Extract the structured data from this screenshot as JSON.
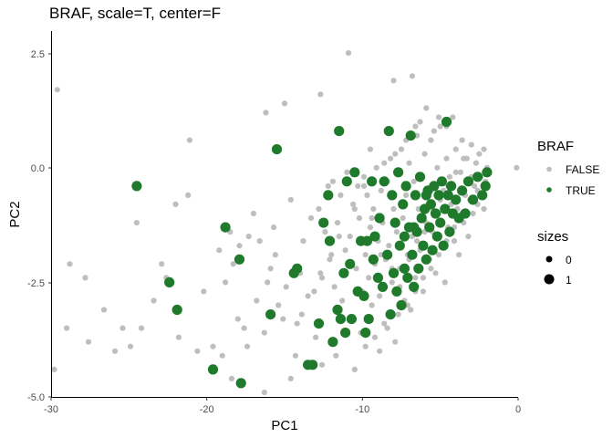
{
  "chart_data": {
    "type": "scatter",
    "title": "BRAF, scale=T, center=F",
    "xlabel": "PC1",
    "ylabel": "PC2",
    "xlim": [
      -30,
      0
    ],
    "ylim": [
      -5,
      3
    ],
    "x_ticks": [
      -30,
      -20,
      -10,
      0
    ],
    "x_tick_labels": [
      "-30",
      "-20",
      "-10",
      "0"
    ],
    "y_ticks": [
      -5,
      -2.5,
      0,
      2.5
    ],
    "y_tick_labels": [
      "-5.0",
      "-2.5",
      "0.0",
      "2.5"
    ],
    "grid": false,
    "legend_placement": "right",
    "legend": {
      "color_title": "BRAF",
      "color_entries": [
        {
          "label": "FALSE",
          "color": "#bebebe"
        },
        {
          "label": "TRUE",
          "color": "#1f7a2b"
        }
      ],
      "size_title": "sizes",
      "size_entries": [
        {
          "label": "0"
        },
        {
          "label": "1"
        }
      ]
    },
    "series": [
      {
        "name": "FALSE",
        "color": "#bebebe",
        "size": 0,
        "points": [
          [
            -29.8,
            -4.4
          ],
          [
            -29.6,
            1.7
          ],
          [
            -29.0,
            -3.5
          ],
          [
            -28.8,
            -2.1
          ],
          [
            -27.8,
            -2.4
          ],
          [
            -27.6,
            -3.8
          ],
          [
            -26.6,
            -3.1
          ],
          [
            -25.9,
            -4.0
          ],
          [
            -25.4,
            -3.5
          ],
          [
            -24.9,
            -3.9
          ],
          [
            -24.5,
            -1.2
          ],
          [
            -24.2,
            -3.5
          ],
          [
            -23.4,
            -2.9
          ],
          [
            -22.9,
            -2.1
          ],
          [
            -22.6,
            -2.4
          ],
          [
            -22.0,
            -0.8
          ],
          [
            -21.8,
            -3.7
          ],
          [
            -21.2,
            -0.6
          ],
          [
            -21.1,
            0.6
          ],
          [
            -20.6,
            -4.0
          ],
          [
            -20.2,
            -2.7
          ],
          [
            -19.6,
            -3.9
          ],
          [
            -19.2,
            -1.8
          ],
          [
            -19.0,
            -4.1
          ],
          [
            -18.8,
            -2.5
          ],
          [
            -18.5,
            -1.4
          ],
          [
            -18.3,
            -2.1
          ],
          [
            -18.0,
            -3.3
          ],
          [
            -17.9,
            -1.7
          ],
          [
            -17.6,
            -3.5
          ],
          [
            -17.3,
            -1.5
          ],
          [
            -17.0,
            -1.0
          ],
          [
            -16.8,
            -2.9
          ],
          [
            -16.6,
            -1.6
          ],
          [
            -16.3,
            -3.6
          ],
          [
            -15.9,
            -2.2
          ],
          [
            -15.7,
            -1.3
          ],
          [
            -15.4,
            -3.0
          ],
          [
            -15.1,
            -3.3
          ],
          [
            -14.9,
            -2.6
          ],
          [
            -14.6,
            -0.7
          ],
          [
            -14.3,
            -4.1
          ],
          [
            -14.2,
            -3.4
          ],
          [
            -14.0,
            -2.3
          ],
          [
            -13.8,
            -1.6
          ],
          [
            -13.5,
            -2.8
          ],
          [
            -13.3,
            -1.1
          ],
          [
            -13.0,
            -3.7
          ],
          [
            -12.8,
            -0.9
          ],
          [
            -12.6,
            -2.4
          ],
          [
            -12.4,
            -1.4
          ],
          [
            -12.2,
            -0.4
          ],
          [
            -12.1,
            -2.0
          ],
          [
            -11.9,
            -0.3
          ],
          [
            -11.8,
            -2.6
          ],
          [
            -11.6,
            -1.2
          ],
          [
            -11.4,
            -0.6
          ],
          [
            -11.3,
            -2.9
          ],
          [
            -11.1,
            -1.8
          ],
          [
            -11.0,
            -0.1
          ],
          [
            -10.9,
            2.5
          ],
          [
            -10.8,
            -1.5
          ],
          [
            -10.7,
            -3.3
          ],
          [
            -10.6,
            -0.8
          ],
          [
            -10.4,
            -2.2
          ],
          [
            -10.3,
            -0.4
          ],
          [
            -10.2,
            -1.1
          ],
          [
            -10.1,
            -3.6
          ],
          [
            -10.0,
            -2.7
          ],
          [
            -9.9,
            -0.2
          ],
          [
            -9.8,
            -1.9
          ],
          [
            -9.7,
            -0.6
          ],
          [
            -9.6,
            -2.4
          ],
          [
            -9.5,
            -1.3
          ],
          [
            -9.4,
            -3.0
          ],
          [
            -9.3,
            -0.9
          ],
          [
            -9.2,
            -2.1
          ],
          [
            -9.1,
            0.0
          ],
          [
            -9.0,
            -1.6
          ],
          [
            -8.9,
            -2.8
          ],
          [
            -8.8,
            -0.5
          ],
          [
            -8.7,
            -1.2
          ],
          [
            -8.6,
            -3.4
          ],
          [
            -8.5,
            -2.0
          ],
          [
            -8.4,
            -0.3
          ],
          [
            -8.3,
            -1.7
          ],
          [
            -8.2,
            0.2
          ],
          [
            -8.1,
            -2.5
          ],
          [
            -8.0,
            -0.9
          ],
          [
            -7.9,
            -3.8
          ],
          [
            -7.8,
            -1.4
          ],
          [
            -7.7,
            -0.1
          ],
          [
            -7.6,
            -2.2
          ],
          [
            -7.5,
            0.4
          ],
          [
            -7.4,
            -1.1
          ],
          [
            -7.3,
            -2.9
          ],
          [
            -7.2,
            -0.6
          ],
          [
            -7.1,
            -1.9
          ],
          [
            -7.0,
            0.1
          ],
          [
            -6.9,
            -3.1
          ],
          [
            -6.8,
            -1.5
          ],
          [
            -6.7,
            -0.3
          ],
          [
            -6.6,
            -2.4
          ],
          [
            -6.5,
            0.7
          ],
          [
            -6.4,
            -0.9
          ],
          [
            -6.3,
            -1.8
          ],
          [
            -6.2,
            -0.2
          ],
          [
            -6.1,
            -2.7
          ],
          [
            -6.0,
            0.3
          ],
          [
            -5.9,
            -1.2
          ],
          [
            -5.8,
            -0.6
          ],
          [
            -5.7,
            -2.0
          ],
          [
            -5.6,
            0.6
          ],
          [
            -5.5,
            -1.4
          ],
          [
            -5.4,
            -0.4
          ],
          [
            -5.3,
            -2.3
          ],
          [
            -5.2,
            0.0
          ],
          [
            -5.1,
            -1.0
          ],
          [
            -5.0,
            0.9
          ],
          [
            -4.9,
            -1.7
          ],
          [
            -4.8,
            -0.5
          ],
          [
            -4.7,
            -2.5
          ],
          [
            -4.6,
            0.2
          ],
          [
            -4.5,
            -1.3
          ],
          [
            -4.4,
            -0.2
          ],
          [
            -4.3,
            -0.8
          ],
          [
            -4.2,
            1.1
          ],
          [
            -4.1,
            -1.6
          ],
          [
            -4.0,
            0.4
          ],
          [
            -3.9,
            -0.9
          ],
          [
            -3.8,
            -1.9
          ],
          [
            -3.7,
            -0.1
          ],
          [
            -3.6,
            0.6
          ],
          [
            -3.5,
            -1.2
          ],
          [
            -3.4,
            -0.6
          ],
          [
            -3.3,
            0.2
          ],
          [
            -3.2,
            -1.5
          ],
          [
            -3.1,
            -0.3
          ],
          [
            -3.0,
            0.5
          ],
          [
            -2.9,
            -1.0
          ],
          [
            -2.8,
            -0.4
          ],
          [
            -2.7,
            0.1
          ],
          [
            -2.6,
            -0.8
          ],
          [
            -2.5,
            0.3
          ],
          [
            -2.4,
            -0.2
          ],
          [
            -2.3,
            -0.6
          ],
          [
            -2.2,
            0.4
          ],
          [
            -2.1,
            -0.3
          ],
          [
            -2.0,
            0.0
          ],
          [
            -0.1,
            0.0
          ],
          [
            -6.3,
            1.0
          ],
          [
            -5.9,
            1.3
          ],
          [
            -5.1,
            1.1
          ],
          [
            -6.6,
            0.9
          ],
          [
            -7.2,
            0.6
          ],
          [
            -5.4,
            0.8
          ],
          [
            -4.6,
            0.9
          ],
          [
            -7.9,
            0.3
          ],
          [
            -9.5,
            0.4
          ],
          [
            -8.6,
            0.1
          ],
          [
            -9.9,
            -0.4
          ],
          [
            -10.5,
            -0.9
          ],
          [
            -11.5,
            -1.5
          ],
          [
            -12.0,
            -1.9
          ],
          [
            -12.7,
            -2.3
          ],
          [
            -13.1,
            -2.7
          ],
          [
            -13.9,
            -3.2
          ],
          [
            -9.4,
            -1.1
          ],
          [
            -8.8,
            -1.9
          ],
          [
            -8.1,
            -2.2
          ],
          [
            -7.6,
            -2.6
          ],
          [
            -7.0,
            -2.0
          ],
          [
            -6.5,
            -1.6
          ],
          [
            -6.0,
            -1.4
          ],
          [
            -5.5,
            -0.9
          ],
          [
            -5.0,
            -0.7
          ],
          [
            -4.5,
            -0.4
          ],
          [
            -4.0,
            -0.1
          ],
          [
            -3.5,
            0.2
          ],
          [
            -3.0,
            -0.2
          ],
          [
            -9.2,
            -3.7
          ],
          [
            -8.4,
            -3.5
          ],
          [
            -7.7,
            -3.2
          ],
          [
            -7.1,
            -3.0
          ],
          [
            -6.6,
            -2.7
          ],
          [
            -6.1,
            -2.4
          ],
          [
            -5.6,
            -2.2
          ],
          [
            -5.1,
            -1.9
          ],
          [
            -4.6,
            -1.6
          ],
          [
            -4.1,
            -1.3
          ],
          [
            -3.6,
            -1.0
          ],
          [
            -3.1,
            -0.7
          ],
          [
            -2.6,
            -0.5
          ],
          [
            -2.2,
            -0.9
          ],
          [
            -15.6,
            -1.9
          ],
          [
            -16.1,
            -2.5
          ],
          [
            -17.4,
            -3.9
          ],
          [
            -14.6,
            -4.6
          ],
          [
            -16.3,
            -4.9
          ],
          [
            -18.4,
            -4.6
          ],
          [
            -12.7,
            1.6
          ],
          [
            -15.0,
            1.4
          ],
          [
            -16.2,
            1.2
          ],
          [
            -8.0,
            1.9
          ],
          [
            -6.8,
            2.0
          ],
          [
            -10.5,
            -4.4
          ],
          [
            -11.7,
            -4.1
          ],
          [
            -12.6,
            -4.3
          ],
          [
            -9.8,
            -3.9
          ],
          [
            -8.9,
            -4.0
          ]
        ]
      },
      {
        "name": "TRUE",
        "color": "#1f7a2b",
        "size": 1,
        "points": [
          [
            -24.5,
            -0.4
          ],
          [
            -22.4,
            -2.5
          ],
          [
            -21.9,
            -3.1
          ],
          [
            -19.6,
            -4.4
          ],
          [
            -18.8,
            -1.3
          ],
          [
            -17.9,
            -2.0
          ],
          [
            -17.8,
            -4.7
          ],
          [
            -15.9,
            -3.2
          ],
          [
            -15.5,
            0.4
          ],
          [
            -14.4,
            -2.3
          ],
          [
            -14.2,
            -2.2
          ],
          [
            -13.5,
            -4.3
          ],
          [
            -13.2,
            -4.3
          ],
          [
            -12.8,
            -3.4
          ],
          [
            -12.5,
            -1.2
          ],
          [
            -12.2,
            -0.6
          ],
          [
            -12.1,
            -1.6
          ],
          [
            -11.9,
            -3.8
          ],
          [
            -11.6,
            -3.1
          ],
          [
            -11.5,
            0.8
          ],
          [
            -11.4,
            -3.3
          ],
          [
            -11.2,
            -2.3
          ],
          [
            -11.1,
            -3.6
          ],
          [
            -11.0,
            -0.3
          ],
          [
            -10.8,
            -2.1
          ],
          [
            -10.7,
            -3.3
          ],
          [
            -10.5,
            -0.1
          ],
          [
            -10.3,
            -2.7
          ],
          [
            -10.1,
            -1.6
          ],
          [
            -9.9,
            -2.8
          ],
          [
            -9.8,
            -3.6
          ],
          [
            -9.7,
            -1.6
          ],
          [
            -9.6,
            -3.3
          ],
          [
            -9.4,
            -0.3
          ],
          [
            -9.3,
            -2.0
          ],
          [
            -9.2,
            -1.5
          ],
          [
            -9.0,
            -2.4
          ],
          [
            -8.9,
            -1.1
          ],
          [
            -8.7,
            -2.6
          ],
          [
            -8.6,
            -0.3
          ],
          [
            -8.4,
            -1.9
          ],
          [
            -8.3,
            0.8
          ],
          [
            -8.2,
            -3.2
          ],
          [
            -8.1,
            -0.6
          ],
          [
            -8.0,
            -2.3
          ],
          [
            -7.9,
            -1.2
          ],
          [
            -7.8,
            -2.7
          ],
          [
            -7.7,
            -0.1
          ],
          [
            -7.6,
            -1.7
          ],
          [
            -7.5,
            -3.0
          ],
          [
            -7.4,
            -0.8
          ],
          [
            -7.3,
            -2.2
          ],
          [
            -7.2,
            -0.4
          ],
          [
            -7.1,
            -2.4
          ],
          [
            -7.0,
            -1.3
          ],
          [
            -6.9,
            0.7
          ],
          [
            -6.8,
            -1.9
          ],
          [
            -6.7,
            -2.6
          ],
          [
            -6.6,
            -0.6
          ],
          [
            -6.5,
            -1.4
          ],
          [
            -6.4,
            -2.2
          ],
          [
            -6.3,
            -0.2
          ],
          [
            -6.2,
            -1.1
          ],
          [
            -6.1,
            -1.7
          ],
          [
            -6.0,
            -0.9
          ],
          [
            -5.9,
            -2.0
          ],
          [
            -5.8,
            -0.5
          ],
          [
            -5.7,
            -1.3
          ],
          [
            -5.6,
            -0.8
          ],
          [
            -5.5,
            -1.8
          ],
          [
            -5.4,
            -0.4
          ],
          [
            -5.3,
            -1.0
          ],
          [
            -5.2,
            -1.5
          ],
          [
            -5.1,
            -0.6
          ],
          [
            -5.0,
            -1.2
          ],
          [
            -4.9,
            -0.3
          ],
          [
            -4.8,
            -1.7
          ],
          [
            -4.7,
            -0.9
          ],
          [
            -4.6,
            1.0
          ],
          [
            -4.5,
            -0.6
          ],
          [
            -4.4,
            -1.4
          ],
          [
            -4.3,
            -0.4
          ],
          [
            -4.2,
            -1.0
          ],
          [
            -4.0,
            -0.7
          ],
          [
            -3.8,
            -1.1
          ],
          [
            -3.6,
            -0.5
          ],
          [
            -3.4,
            -1.0
          ],
          [
            -3.2,
            -0.3
          ],
          [
            -2.9,
            -0.7
          ],
          [
            -2.6,
            -0.2
          ],
          [
            -2.3,
            -0.6
          ],
          [
            -2.0,
            -0.1
          ],
          [
            -2.1,
            -0.4
          ],
          [
            -6.7,
            -1.3
          ],
          [
            -7.3,
            -1.5
          ],
          [
            -5.9,
            -0.6
          ]
        ]
      }
    ]
  }
}
